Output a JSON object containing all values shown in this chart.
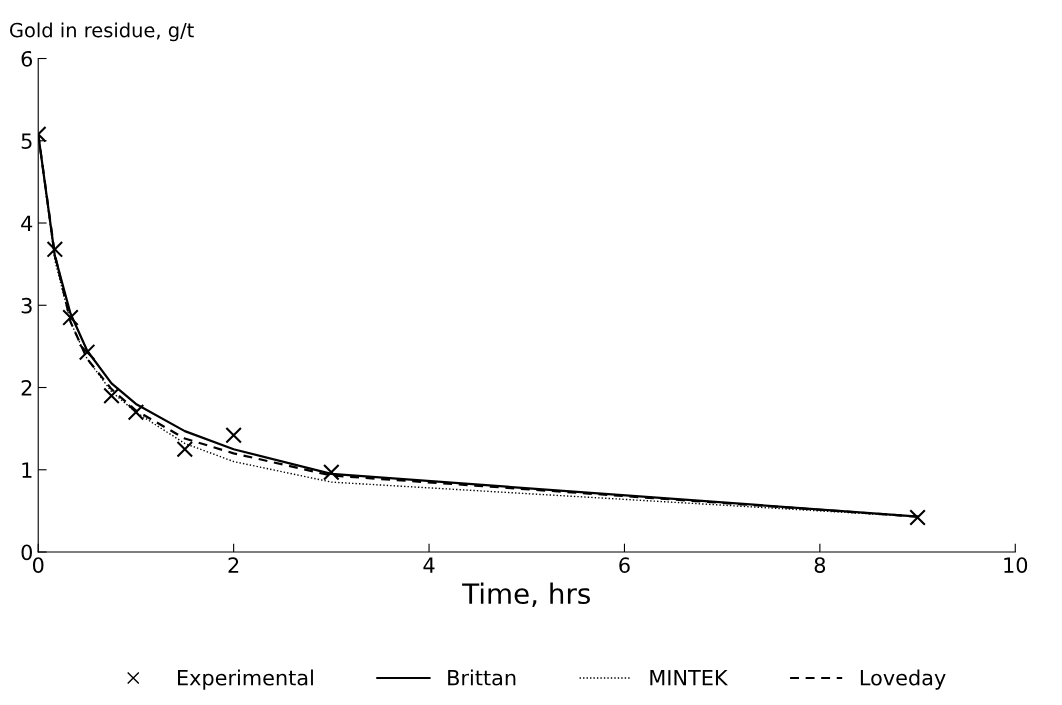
{
  "chart_data": {
    "type": "line",
    "xlabel": "Time, hrs",
    "ylabel": "Gold in residue, g/t",
    "x": [
      0,
      0.17,
      0.33,
      0.5,
      0.75,
      1,
      1.5,
      2,
      3,
      9
    ],
    "series": [
      {
        "name": "Experimental",
        "type": "scatter",
        "marker": "cross",
        "color": "#000000",
        "values": [
          5.08,
          3.68,
          2.85,
          2.43,
          1.9,
          1.7,
          1.25,
          1.42,
          0.97,
          0.42
        ]
      },
      {
        "name": "Brittan",
        "line_style": "solid",
        "color": "#000000",
        "values": [
          5.08,
          3.6,
          2.9,
          2.45,
          2.05,
          1.8,
          1.47,
          1.25,
          0.95,
          0.43
        ]
      },
      {
        "name": "MINTEK",
        "line_style": "dotted",
        "color": "#000000",
        "values": [
          5.08,
          3.55,
          2.8,
          2.35,
          1.95,
          1.7,
          1.32,
          1.1,
          0.85,
          0.43
        ]
      },
      {
        "name": "Loveday",
        "line_style": "dashed",
        "color": "#000000",
        "values": [
          5.08,
          3.62,
          2.8,
          2.35,
          1.98,
          1.72,
          1.38,
          1.2,
          0.93,
          0.43
        ]
      }
    ],
    "xlim": [
      0,
      10
    ],
    "xticks": [
      0,
      2,
      4,
      6,
      8,
      10
    ],
    "ylim": [
      0,
      6
    ],
    "yticks": [
      0,
      1,
      2,
      3,
      4,
      5,
      6
    ],
    "grid": false,
    "legend": "bottom"
  }
}
